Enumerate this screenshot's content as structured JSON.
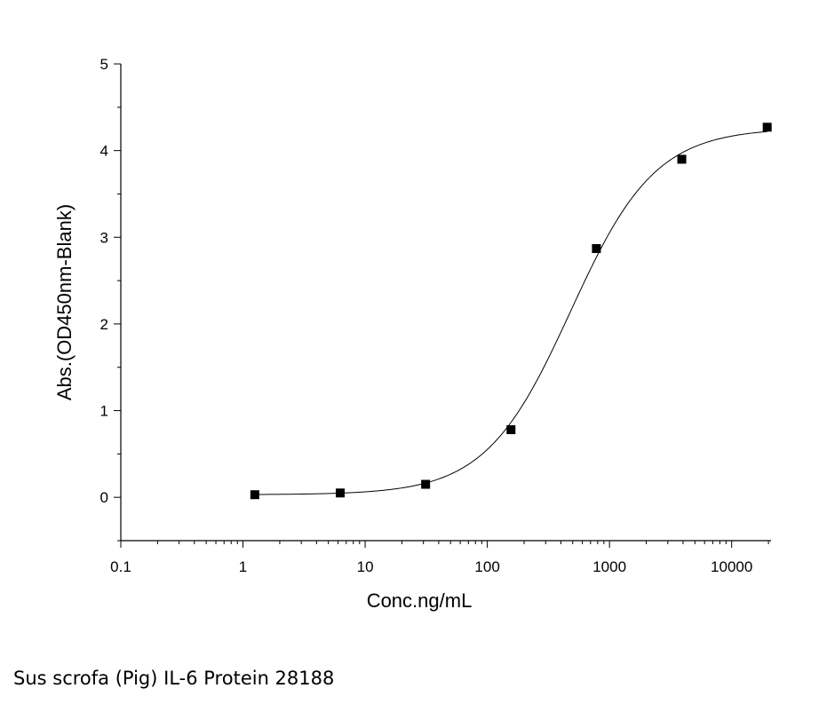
{
  "chart_data": {
    "type": "scatter",
    "xlabel": "Conc.ng/mL",
    "ylabel": "Abs.(OD450nm-Blank)",
    "x_scale": "log",
    "xlim": [
      0.1,
      21000
    ],
    "ylim": [
      -0.5,
      5
    ],
    "x_ticks": [
      0.1,
      1,
      10,
      100,
      1000,
      10000
    ],
    "x_tick_labels": [
      "0.1",
      "1",
      "10",
      "100",
      "1000",
      "10000"
    ],
    "y_ticks": [
      0,
      1,
      2,
      3,
      4,
      5
    ],
    "y_tick_labels": [
      "0",
      "1",
      "2",
      "3",
      "4",
      "5"
    ],
    "grid": false,
    "series": [
      {
        "marker": "square",
        "color": "#000000",
        "x": [
          1.25,
          6.25,
          31.25,
          156.25,
          781.25,
          3906.25,
          19531.25
        ],
        "y": [
          0.03,
          0.05,
          0.15,
          0.78,
          2.87,
          3.9,
          4.27
        ]
      }
    ],
    "fit_curve": {
      "model": "4PL",
      "color": "#000000",
      "bottom": 0.03,
      "top": 4.26,
      "ec50": 480,
      "hill": 1.25
    }
  },
  "caption": "Sus scrofa (Pig) IL-6 Protein 28188"
}
